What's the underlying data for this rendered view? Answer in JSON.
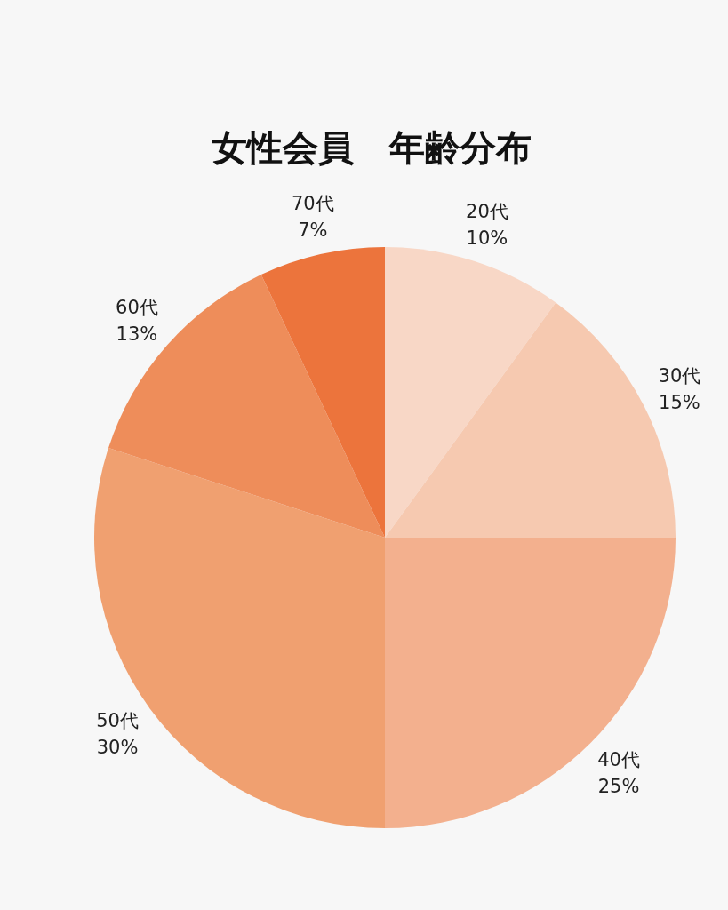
{
  "chart_data": {
    "type": "pie",
    "title": "女性会員　年齢分布",
    "categories": [
      "20代",
      "30代",
      "40代",
      "50代",
      "60代",
      "70代"
    ],
    "values": [
      10,
      15,
      25,
      30,
      13,
      7
    ],
    "colors": [
      "#f8d7c6",
      "#f6c9b0",
      "#f3b08e",
      "#f0a070",
      "#ee8d5a",
      "#ec743c"
    ],
    "value_labels": [
      "10%",
      "15%",
      "25%",
      "30%",
      "13%",
      "7%"
    ]
  }
}
